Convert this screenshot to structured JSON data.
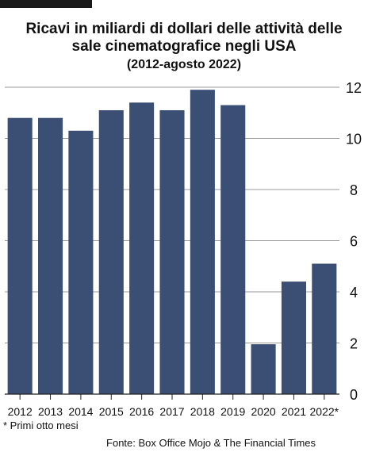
{
  "chart_data": {
    "type": "bar",
    "title": "Ricavi in miliardi di dollari delle attività delle sale cinematografice negli USA",
    "subtitle": "(2012-agosto 2022)",
    "categories": [
      "2012",
      "2013",
      "2014",
      "2015",
      "2016",
      "2017",
      "2018",
      "2019",
      "2020",
      "2021",
      "2022*"
    ],
    "values": [
      10.8,
      10.8,
      10.3,
      11.1,
      11.4,
      11.1,
      11.9,
      11.3,
      1.95,
      4.4,
      5.1
    ],
    "ylim": [
      0,
      12
    ],
    "yticks": [
      0,
      2,
      4,
      6,
      8,
      10,
      12
    ],
    "ytick_labels": [
      "0",
      "2",
      "4",
      "6",
      "8",
      "10",
      "12"
    ],
    "grid": true,
    "y_axis_position": "right",
    "xlabel": "",
    "ylabel": "",
    "colors": {
      "bar": "#3b4f75",
      "grid": "#9a9a9a",
      "axis": "#222222",
      "text": "#111111"
    }
  },
  "top_bar_color": "#1a1a1a",
  "footnote": "* Primi otto mesi",
  "source": "Fonte: Box Office Mojo & The Financial Times"
}
